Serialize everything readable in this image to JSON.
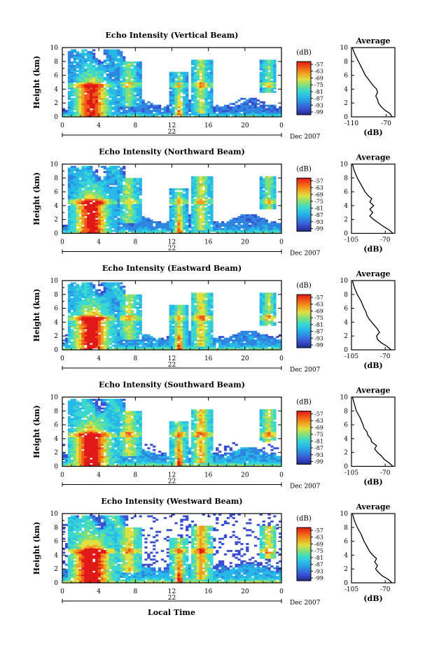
{
  "figure": {
    "date_label": "Dec 2007",
    "x_axis_title": "Local Time",
    "y_axis_title": "Height (km)",
    "colorbar_unit": "(dB)",
    "avg_title": "Average",
    "avg_xlabel": "(dB)",
    "colors": {
      "scale": [
        "#222a8c",
        "#3a4fd0",
        "#2f86e0",
        "#28b8e8",
        "#3ad8d0",
        "#7fe07a",
        "#e0e040",
        "#f0a020",
        "#f05a18",
        "#e01818"
      ]
    }
  },
  "chart_data": [
    {
      "type": "heatmap",
      "title": "Echo Intensity (Vertical Beam)",
      "xlabel": "",
      "ylabel": "Height (km)",
      "xlim": [
        0,
        24
      ],
      "ylim": [
        0,
        10
      ],
      "x_ticks": [
        "0",
        "4",
        "8",
        "12",
        "16",
        "20",
        "0"
      ],
      "day_label": "22",
      "y_ticks": [
        "0",
        "2",
        "4",
        "6",
        "8",
        "10"
      ],
      "colorbar_ticks": [
        "-57",
        "-63",
        "-69",
        "-75",
        "-81",
        "-87",
        "-93",
        "-99"
      ],
      "profile": {
        "title": "Average",
        "xlabel": "(dB)",
        "x_ticks": [
          "-110",
          "-70"
        ],
        "xlim": [
          -110,
          -60
        ],
        "y_ticks": [
          "0",
          "2",
          "4",
          "6",
          "8",
          "10"
        ],
        "points": [
          [
            -63,
            0
          ],
          [
            -66,
            0.5
          ],
          [
            -72,
            1
          ],
          [
            -76,
            1.5
          ],
          [
            -79,
            2
          ],
          [
            -80,
            2.5
          ],
          [
            -82,
            3
          ],
          [
            -80,
            3.5
          ],
          [
            -81,
            4
          ],
          [
            -85,
            4.5
          ],
          [
            -88,
            5
          ],
          [
            -91,
            5.5
          ],
          [
            -94,
            6
          ],
          [
            -98,
            7
          ],
          [
            -102,
            8
          ],
          [
            -106,
            9
          ],
          [
            -109,
            10
          ]
        ]
      }
    },
    {
      "type": "heatmap",
      "title": "Echo Intensity (Northward Beam)",
      "xlabel": "",
      "ylabel": "Height (km)",
      "xlim": [
        0,
        24
      ],
      "ylim": [
        0,
        10
      ],
      "x_ticks": [
        "0",
        "4",
        "8",
        "12",
        "16",
        "20",
        "0"
      ],
      "day_label": "22",
      "y_ticks": [
        "0",
        "2",
        "4",
        "6",
        "8",
        "10"
      ],
      "colorbar_ticks": [
        "-57",
        "-63",
        "-69",
        "-75",
        "-81",
        "-87",
        "-93",
        "-99"
      ],
      "profile": {
        "title": "Average",
        "xlabel": "(dB)",
        "x_ticks": [
          "-105",
          "-70"
        ],
        "xlim": [
          -105,
          -60
        ],
        "y_ticks": [
          "0",
          "2",
          "4",
          "6",
          "8",
          "10"
        ],
        "points": [
          [
            -62,
            0
          ],
          [
            -66,
            0.5
          ],
          [
            -72,
            1
          ],
          [
            -77,
            1.5
          ],
          [
            -82,
            2
          ],
          [
            -86,
            2.5
          ],
          [
            -83,
            3
          ],
          [
            -86,
            3.5
          ],
          [
            -82,
            4
          ],
          [
            -86,
            4.5
          ],
          [
            -84,
            5
          ],
          [
            -88,
            5.5
          ],
          [
            -91,
            6
          ],
          [
            -95,
            7
          ],
          [
            -99,
            8
          ],
          [
            -102,
            9
          ],
          [
            -104,
            10
          ]
        ]
      }
    },
    {
      "type": "heatmap",
      "title": "Echo Intensity (Eastward Beam)",
      "xlabel": "",
      "ylabel": "Height (km)",
      "xlim": [
        0,
        24
      ],
      "ylim": [
        0,
        10
      ],
      "x_ticks": [
        "0",
        "4",
        "8",
        "12",
        "16",
        "20",
        "0"
      ],
      "day_label": "22",
      "y_ticks": [
        "0",
        "2",
        "4",
        "6",
        "8",
        "10"
      ],
      "colorbar_ticks": [
        "-57",
        "-63",
        "-69",
        "-75",
        "-81",
        "-87",
        "-93",
        "-99"
      ],
      "profile": {
        "title": "Average",
        "xlabel": "(dB)",
        "x_ticks": [
          "-105",
          "-70"
        ],
        "xlim": [
          -105,
          -60
        ],
        "y_ticks": [
          "0",
          "2",
          "4",
          "6",
          "8",
          "10"
        ],
        "points": [
          [
            -64,
            0
          ],
          [
            -68,
            0.5
          ],
          [
            -74,
            1
          ],
          [
            -78,
            1.5
          ],
          [
            -79,
            2
          ],
          [
            -76,
            2.5
          ],
          [
            -78,
            3
          ],
          [
            -81,
            3.5
          ],
          [
            -84,
            4
          ],
          [
            -87,
            4.5
          ],
          [
            -89,
            5
          ],
          [
            -90,
            5.5
          ],
          [
            -92,
            6
          ],
          [
            -95,
            7
          ],
          [
            -99,
            8
          ],
          [
            -102,
            9
          ],
          [
            -104,
            10
          ]
        ]
      }
    },
    {
      "type": "heatmap",
      "title": "Echo Intensity (Southward Beam)",
      "xlabel": "",
      "ylabel": "Height (km)",
      "xlim": [
        0,
        24
      ],
      "ylim": [
        0,
        10
      ],
      "x_ticks": [
        "0",
        "4",
        "8",
        "12",
        "16",
        "20",
        "0"
      ],
      "day_label": "22",
      "y_ticks": [
        "0",
        "2",
        "4",
        "6",
        "8",
        "10"
      ],
      "colorbar_ticks": [
        "-57",
        "-63",
        "-69",
        "-75",
        "-81",
        "-87",
        "-93",
        "-99"
      ],
      "profile": {
        "title": "Average",
        "xlabel": "(dB)",
        "x_ticks": [
          "-105",
          "-70"
        ],
        "xlim": [
          -105,
          -60
        ],
        "y_ticks": [
          "0",
          "2",
          "4",
          "6",
          "8",
          "10"
        ],
        "points": [
          [
            -62,
            0
          ],
          [
            -66,
            0.5
          ],
          [
            -71,
            1
          ],
          [
            -74,
            1.5
          ],
          [
            -78,
            2
          ],
          [
            -81,
            2.5
          ],
          [
            -79,
            3
          ],
          [
            -84,
            3.5
          ],
          [
            -85,
            4
          ],
          [
            -88,
            4.5
          ],
          [
            -89,
            5
          ],
          [
            -92,
            5.5
          ],
          [
            -93,
            6
          ],
          [
            -96,
            7
          ],
          [
            -100,
            8
          ],
          [
            -102,
            9
          ],
          [
            -104,
            10
          ]
        ]
      }
    },
    {
      "type": "heatmap",
      "title": "Echo Intensity (Westward Beam)",
      "xlabel": "Local Time",
      "ylabel": "Height (km)",
      "xlim": [
        0,
        24
      ],
      "ylim": [
        0,
        10
      ],
      "x_ticks": [
        "0",
        "4",
        "8",
        "12",
        "16",
        "20",
        "0"
      ],
      "day_label": "22",
      "y_ticks": [
        "0",
        "2",
        "4",
        "6",
        "8",
        "10"
      ],
      "colorbar_ticks": [
        "-57",
        "-63",
        "-69",
        "-75",
        "-81",
        "-87",
        "-93",
        "-99"
      ],
      "profile": {
        "title": "Average",
        "xlabel": "(dB)",
        "x_ticks": [
          "-105",
          "-70"
        ],
        "xlim": [
          -105,
          -60
        ],
        "y_ticks": [
          "0",
          "2",
          "4",
          "6",
          "8",
          "10"
        ],
        "points": [
          [
            -63,
            0
          ],
          [
            -67,
            0.5
          ],
          [
            -73,
            1
          ],
          [
            -77,
            1.5
          ],
          [
            -80,
            2
          ],
          [
            -78,
            2.5
          ],
          [
            -81,
            3
          ],
          [
            -79,
            3.5
          ],
          [
            -83,
            4
          ],
          [
            -86,
            4.5
          ],
          [
            -88,
            5
          ],
          [
            -90,
            5.5
          ],
          [
            -92,
            6
          ],
          [
            -95,
            7
          ],
          [
            -99,
            8
          ],
          [
            -102,
            9
          ],
          [
            -104,
            10
          ]
        ]
      }
    }
  ]
}
